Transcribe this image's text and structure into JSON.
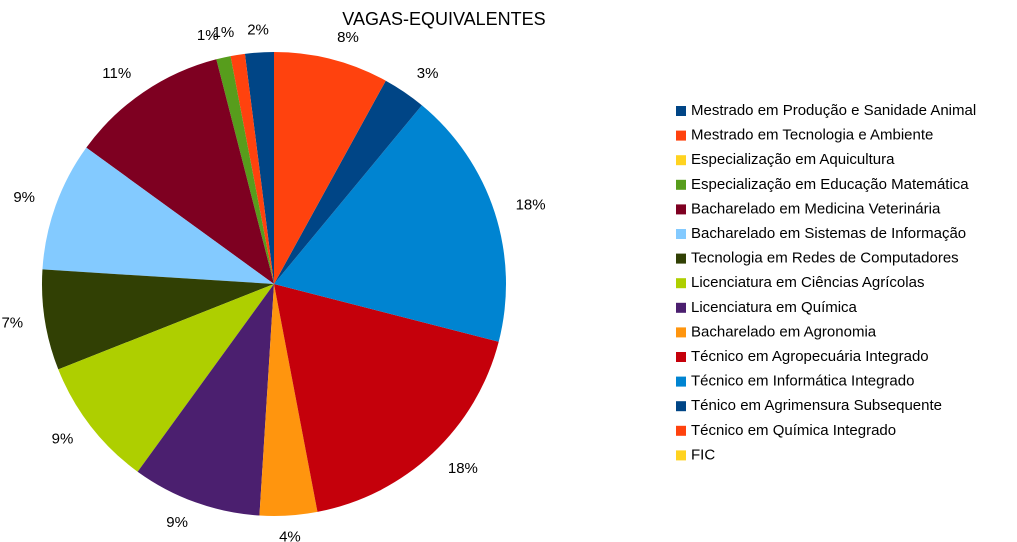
{
  "chart_data": {
    "type": "pie",
    "title": "VAGAS-EQUIVALENTES",
    "categories": [
      "Mestrado em Produção e Sanidade Animal",
      "Mestrado em Tecnologia e Ambiente",
      "Especialização em Aquicultura",
      "Especialização em Educação Matemática",
      "Bacharelado em Medicina Veterinária",
      "Bacharelado em Sistemas de Informação",
      "Tecnologia em Redes de Computadores",
      "Licenciatura em Ciências Agrícolas",
      "Licenciatura em Química",
      "Bacharelado em Agronomia",
      "Técnico em Agropecuária Integrado",
      "Técnico em Informática Integrado",
      "Ténico em Agrimensura Subsequente",
      "Técnico em Química Integrado",
      "FIC"
    ],
    "values": [
      2,
      1,
      0,
      1,
      11,
      9,
      7,
      9,
      9,
      4,
      18,
      18,
      3,
      8,
      0
    ],
    "value_labels": [
      "2%",
      "1%",
      null,
      "1%",
      "11%",
      "9%",
      "7%",
      "9%",
      "9%",
      "4%",
      "18%",
      "18%",
      "3%",
      "8%",
      null
    ],
    "colors": [
      "#004586",
      "#ff420e",
      "#ffd320",
      "#579d1c",
      "#7e0021",
      "#83caff",
      "#314004",
      "#aecf00",
      "#4b1f6f",
      "#ff950e",
      "#c5000b",
      "#0084d1",
      "#004586",
      "#ff420e",
      "#ffd320"
    ],
    "direction": "counterclockwise",
    "legend": "right"
  }
}
